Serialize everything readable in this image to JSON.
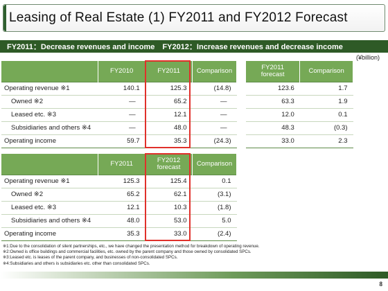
{
  "title": "Leasing of Real Estate (1) FY2011 and FY2012 Forecast",
  "subtitle": "FY2011：Decrease revenues and income　FY2012：Increase revenues and decrease income",
  "unit": "(¥billion)",
  "table1": {
    "headers": [
      "",
      "FY2010",
      "FY2011",
      "Comparison"
    ],
    "rows": [
      {
        "label": "Operating revenue ※1",
        "cells": [
          "140.1",
          "125.3",
          "(14.8)"
        ]
      },
      {
        "label": "Owned ※2",
        "cells": [
          "—",
          "65.2",
          "—"
        ]
      },
      {
        "label": "Leased etc. ※3",
        "cells": [
          "—",
          "12.1",
          "—"
        ]
      },
      {
        "label": "Subsidiaries and others ※4",
        "cells": [
          "—",
          "48.0",
          "—"
        ]
      },
      {
        "label": "Operating income",
        "cells": [
          "59.7",
          "35.3",
          "(24.3)"
        ]
      }
    ]
  },
  "table2": {
    "headers": [
      "FY2011 forecast",
      "Comparison"
    ],
    "rows": [
      {
        "cells": [
          "123.6",
          "1.7"
        ]
      },
      {
        "cells": [
          "63.3",
          "1.9"
        ]
      },
      {
        "cells": [
          "12.0",
          "0.1"
        ]
      },
      {
        "cells": [
          "48.3",
          "(0.3)"
        ]
      },
      {
        "cells": [
          "33.0",
          "2.3"
        ]
      }
    ]
  },
  "table3": {
    "headers": [
      "",
      "FY2011",
      "FY2012 forecast",
      "Comparison"
    ],
    "rows": [
      {
        "label": "Operating revenue ※1",
        "cells": [
          "125.3",
          "125.4",
          "0.1"
        ]
      },
      {
        "label": "Owned ※2",
        "cells": [
          "65.2",
          "62.1",
          "(3.1)"
        ]
      },
      {
        "label": "Leased etc. ※3",
        "cells": [
          "12.1",
          "10.3",
          "(1.8)"
        ]
      },
      {
        "label": "Subsidiaries and others ※4",
        "cells": [
          "48.0",
          "53.0",
          "5.0"
        ]
      },
      {
        "label": "Operating income",
        "cells": [
          "35.3",
          "33.0",
          "(2.4)"
        ]
      }
    ]
  },
  "notes": [
    "※1:Due to the consolidation of silent partnerships, etc., we have changed the presentation method for breakdown of operating revenue.",
    "※2:Owned is office buildings and commercial facilities, etc. owned by the parent company and those owned by consolidated SPCs.",
    "※3:Leased etc. is leases of the parent company, and businesses of non-consolidated SPCs.",
    "※4:Subsidiaries and others is subsidiaries etc. other than consolidated SPCs."
  ],
  "page_number": "8",
  "colors": {
    "header_green": "#76a956",
    "dark_green": "#2e5a26",
    "highlight_red": "#e0302a"
  }
}
